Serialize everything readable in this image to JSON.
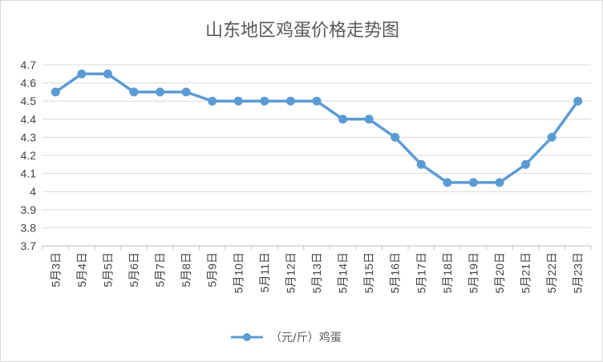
{
  "chart_data": {
    "type": "line",
    "title": "山东地区鸡蛋价格走势图",
    "categories": [
      "5月3日",
      "5月4日",
      "5月5日",
      "5月6日",
      "5月7日",
      "5月8日",
      "5月9日",
      "5月10日",
      "5月11日",
      "5月12日",
      "5月13日",
      "5月14日",
      "5月15日",
      "5月16日",
      "5月17日",
      "5月18日",
      "5月19日",
      "5月20日",
      "5月21日",
      "5月22日",
      "5月23日"
    ],
    "series": [
      {
        "name": "（元/斤）鸡蛋",
        "values": [
          4.55,
          4.65,
          4.65,
          4.55,
          4.55,
          4.55,
          4.5,
          4.5,
          4.5,
          4.5,
          4.5,
          4.4,
          4.4,
          4.3,
          4.15,
          4.05,
          4.05,
          4.05,
          4.15,
          4.3,
          4.5
        ],
        "color": "#5b9bd5"
      }
    ],
    "xlabel": "",
    "ylabel": "",
    "ylim": [
      3.7,
      4.7
    ],
    "yticks": [
      "3.7",
      "3.8",
      "3.9",
      "4",
      "4.1",
      "4.2",
      "4.3",
      "4.4",
      "4.5",
      "4.6",
      "4.7"
    ],
    "grid": true,
    "legend": "bottom"
  },
  "colors": {
    "series": "#5b9bd5",
    "grid": "#d9d9d9",
    "axis": "#bfbfbf",
    "text": "#404040",
    "title": "#595959"
  }
}
